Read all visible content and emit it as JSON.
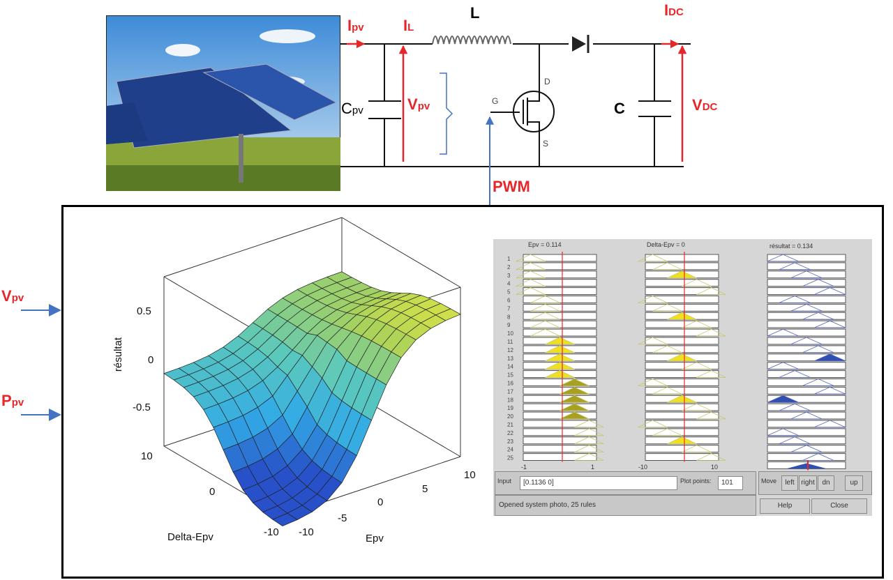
{
  "circuit": {
    "labels": {
      "ipv": "I",
      "ipv_sub": "pv",
      "il": "I",
      "il_sub": "L",
      "l": "L",
      "idc": "I",
      "idc_sub": "DC",
      "vdc": "V",
      "vdc_sub": "DC",
      "c": "C",
      "cpv": "C",
      "cpv_sub": "pv",
      "vpv": "V",
      "vpv_sub": "pv",
      "g": "G",
      "d": "D",
      "s": "S",
      "pwm": "PWM"
    },
    "colors": {
      "signal": "#e8262a",
      "control": "#4472c4",
      "wire": "#111111"
    }
  },
  "inputs": [
    {
      "label": "V",
      "sub": "pv"
    },
    {
      "label": "P",
      "sub": "pv"
    }
  ],
  "surface": {
    "zlabel": "résultat",
    "xlabel": "Epv",
    "ylabel": "Delta-Epv",
    "z_ticks": [
      "0.5",
      "0",
      "-0.5"
    ],
    "epv_ticks": [
      "-10",
      "-5",
      "0",
      "5",
      "10"
    ],
    "delta_ticks": [
      "10",
      "0",
      "-10"
    ]
  },
  "rule_viewer": {
    "headers": [
      "Epv = 0.114",
      "Delta-Epv = 0",
      "résultat = 0.134"
    ],
    "rule_numbers": [
      "1",
      "2",
      "3",
      "4",
      "5",
      "6",
      "7",
      "8",
      "9",
      "10",
      "11",
      "12",
      "13",
      "14",
      "15",
      "16",
      "17",
      "18",
      "19",
      "20",
      "21",
      "22",
      "23",
      "24",
      "25"
    ],
    "epv_range": [
      "-1",
      "1"
    ],
    "delta_range": [
      "-10",
      "10"
    ],
    "input_label": "Input",
    "input_value": "[0.1136 0]",
    "plot_label": "Plot points:",
    "plot_value": "101",
    "move_label": "Move",
    "move_buttons": [
      "left",
      "right",
      "dn",
      "up"
    ],
    "status": "Opened system photo, 25 rules",
    "help": "Help",
    "close": "Close"
  }
}
